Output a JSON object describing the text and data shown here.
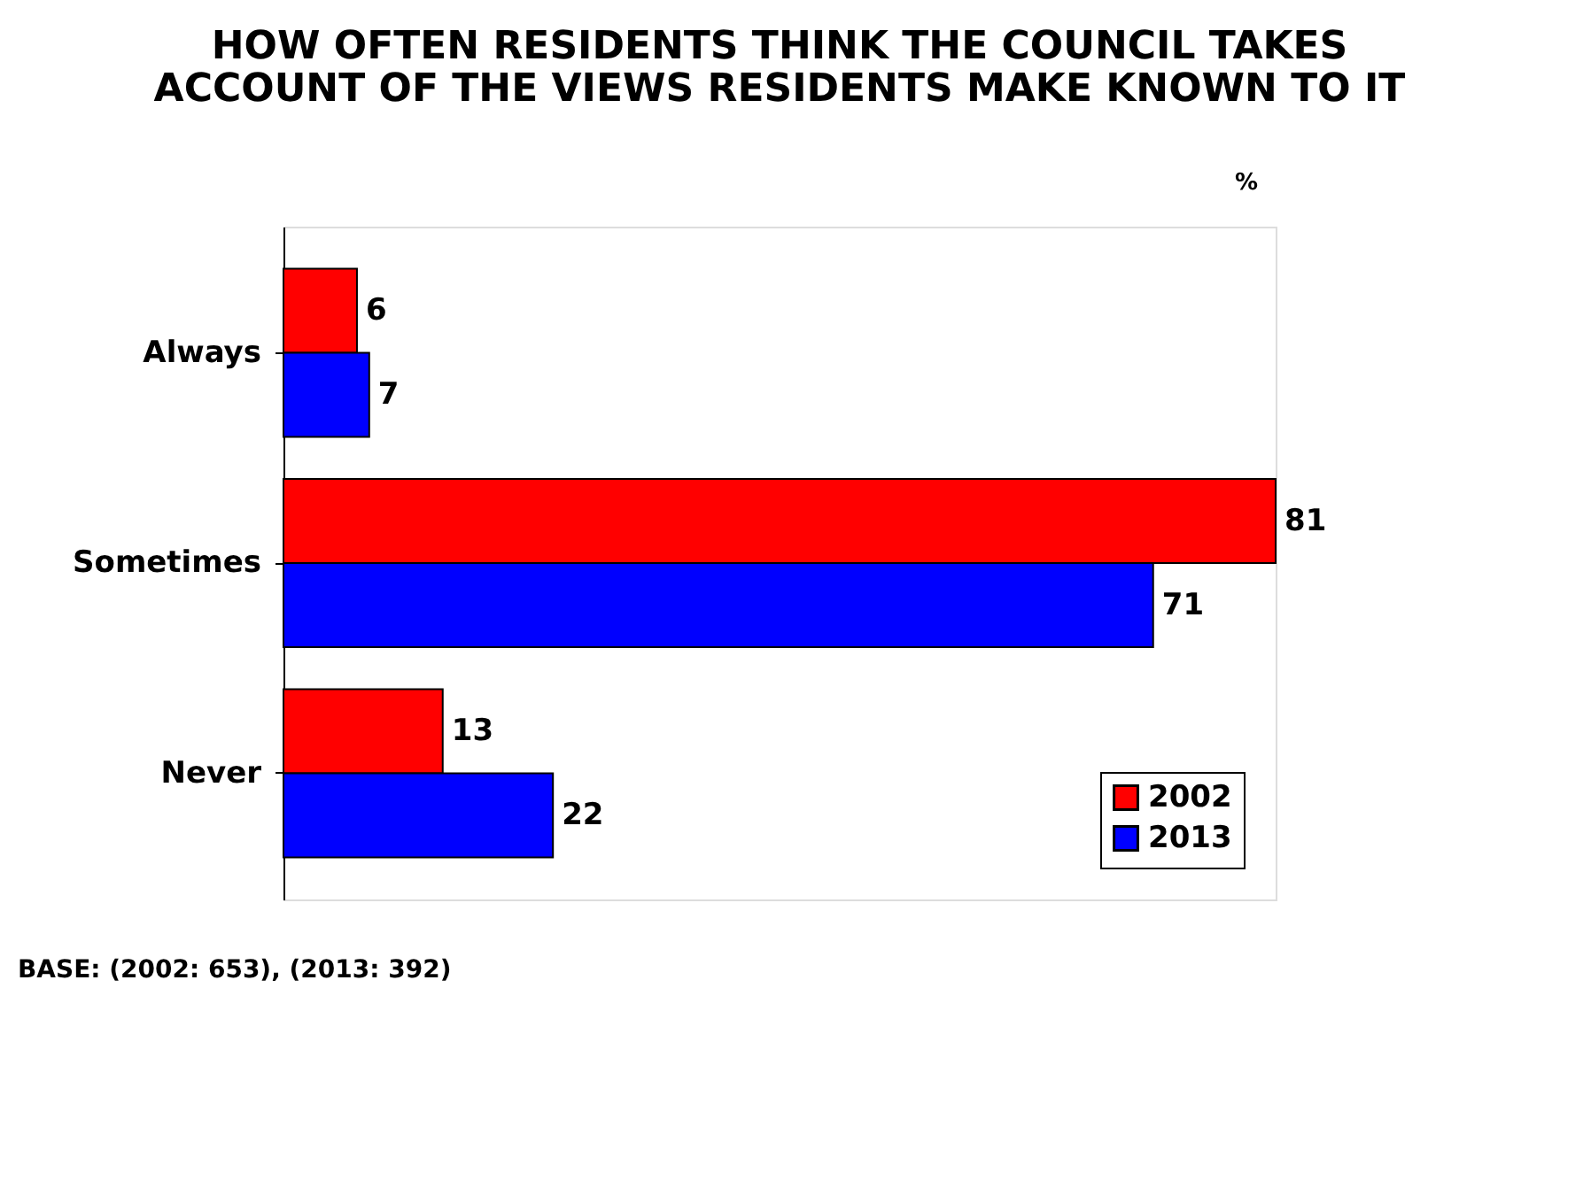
{
  "chart_data": {
    "type": "bar",
    "orientation": "horizontal",
    "title": "HOW OFTEN RESIDENTS THINK THE COUNCIL TAKES\nACCOUNT OF THE VIEWS RESIDENTS MAKE KNOWN TO IT",
    "categories": [
      "Always",
      "Sometimes",
      "Never"
    ],
    "series": [
      {
        "name": "2002",
        "color": "#ff0000",
        "values": [
          6,
          81,
          13
        ]
      },
      {
        "name": "2013",
        "color": "#0000ff",
        "values": [
          7,
          71,
          22
        ]
      }
    ],
    "data_labels": true,
    "legend": "bottom right",
    "grid": false,
    "annotations": [
      "%",
      "BASE: (2002: 653), (2013: 392)"
    ]
  }
}
